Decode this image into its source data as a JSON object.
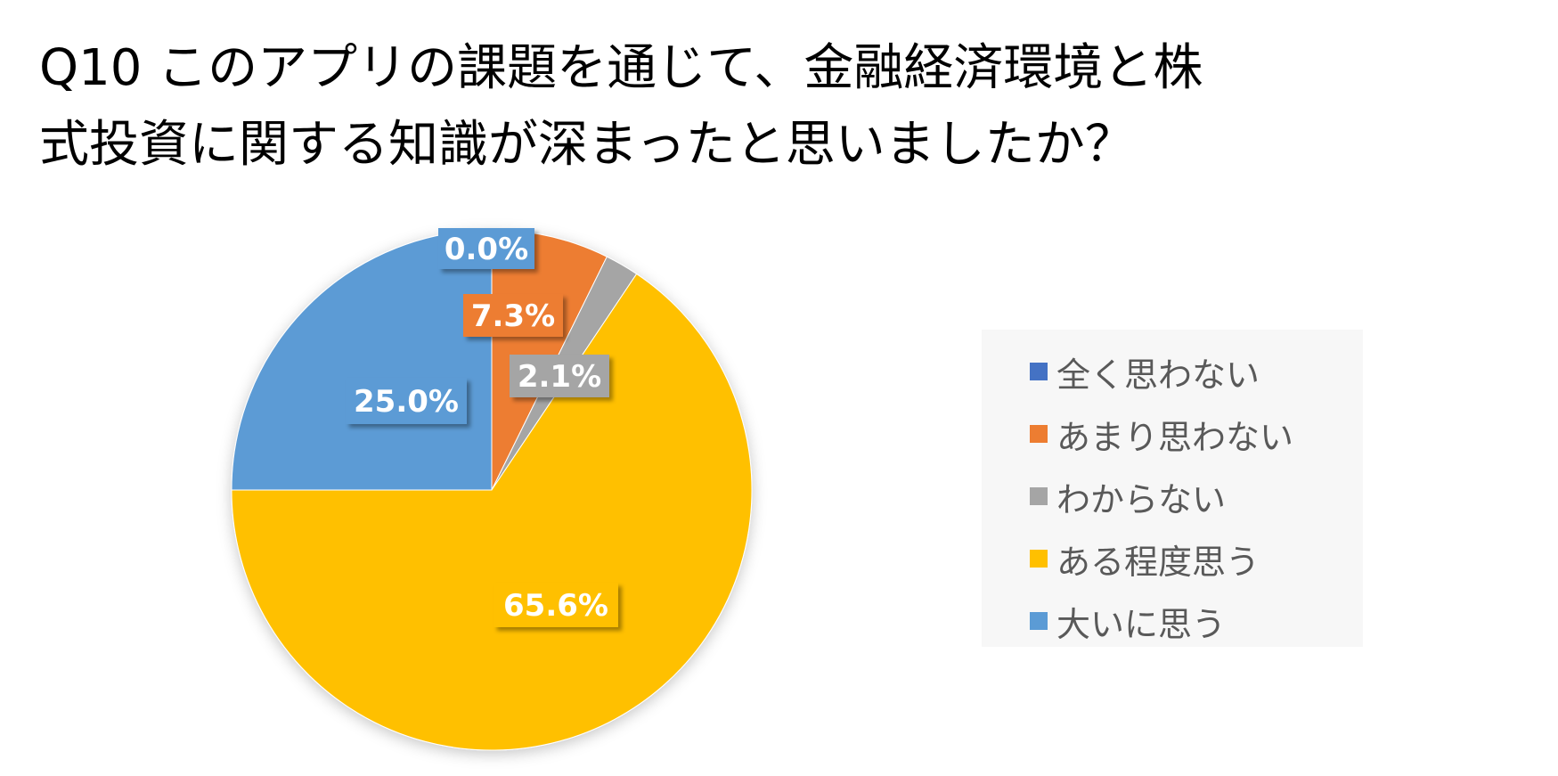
{
  "chart_data": {
    "type": "pie",
    "title": "Q10 このアプリの課題を通じて、金融経済環境と株式投資に関する知識が深まったと思いましたか？",
    "title_lines": [
      "Q10 このアプリの課題を通じて、金融経済環境と株",
      "式投資に関する知識が深まったと思いましたか？"
    ],
    "categories": [
      "全く思わない",
      "あまり思わない",
      "わからない",
      "ある程度思う",
      "大いに思う"
    ],
    "values": [
      0.0,
      7.3,
      2.1,
      65.6,
      25.0
    ],
    "data_labels": [
      "0.0%",
      "7.3%",
      "2.1%",
      "65.6%",
      "25.0%"
    ],
    "colors": [
      "#4472c4",
      "#ed7d31",
      "#a5a5a5",
      "#ffc000",
      "#5b9bd5"
    ],
    "unit": "%",
    "start_angle": "12 o'clock",
    "direction": "clockwise",
    "legend_position": "right"
  }
}
